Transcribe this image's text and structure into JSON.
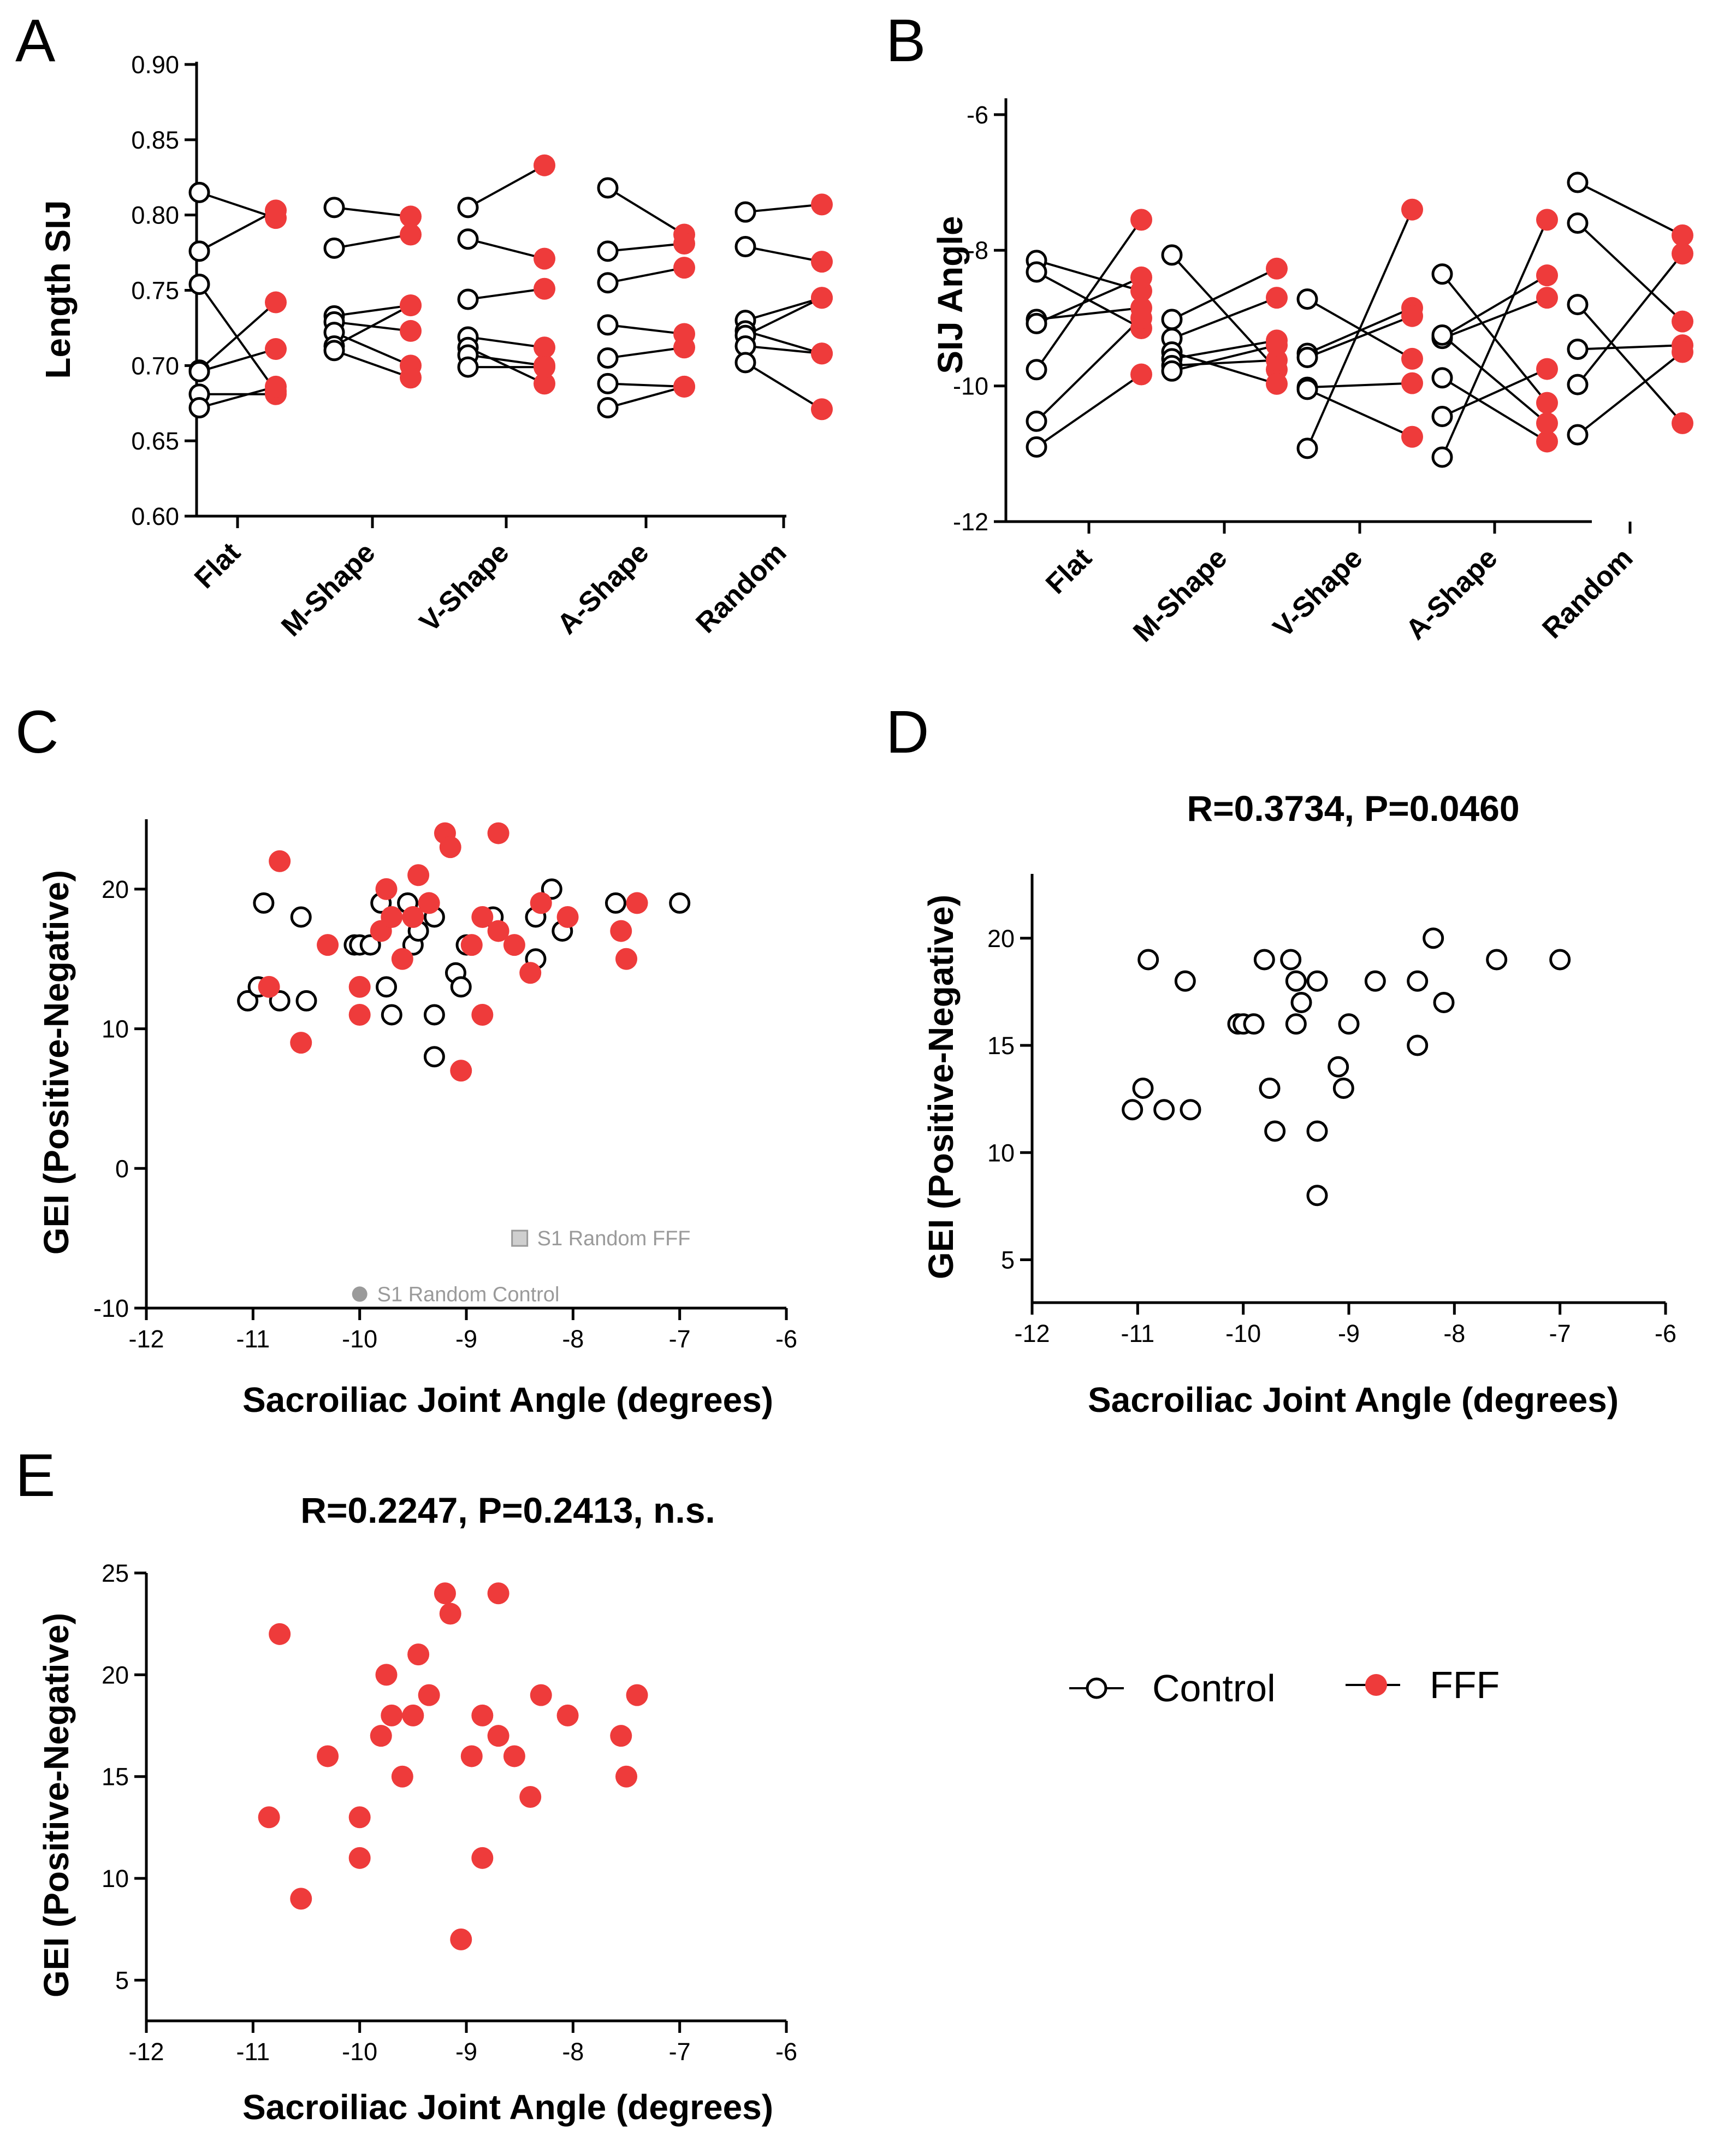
{
  "colors": {
    "control_stroke": "#000000",
    "fff_fill": "#ee3b3b",
    "annotation": "#9a9a9a"
  },
  "legend": {
    "control_label": "Control",
    "fff_label": "FFF"
  },
  "chart_data": [
    {
      "panel": "A",
      "type": "scatter",
      "style": "paired-dot",
      "title": "",
      "xlabel": "",
      "ylabel": "Length SIJ",
      "ylim": [
        0.6,
        0.9
      ],
      "yticks": [
        0.6,
        0.65,
        0.7,
        0.75,
        0.8,
        0.85,
        0.9
      ],
      "ytick_labels": [
        "0.60",
        "0.65",
        "0.70",
        "0.75",
        "0.80",
        "0.85",
        "0.90"
      ],
      "categories": [
        "Flat",
        "M-Shape",
        "V-Shape",
        "A-Shape",
        "Random"
      ],
      "pairs": [
        [
          [
            0.815,
            0.798
          ],
          [
            0.776,
            0.803
          ],
          [
            0.754,
            0.683
          ],
          [
            0.697,
            0.742
          ],
          [
            0.696,
            0.711
          ],
          [
            0.681,
            0.681
          ],
          [
            0.672,
            0.686
          ]
        ],
        [
          [
            0.805,
            0.799
          ],
          [
            0.778,
            0.787
          ],
          [
            0.733,
            0.74
          ],
          [
            0.729,
            0.723
          ],
          [
            0.722,
            0.7
          ],
          [
            0.713,
            0.74
          ],
          [
            0.71,
            0.692
          ]
        ],
        [
          [
            0.805,
            0.833
          ],
          [
            0.784,
            0.771
          ],
          [
            0.744,
            0.751
          ],
          [
            0.719,
            0.712
          ],
          [
            0.712,
            0.688
          ],
          [
            0.707,
            0.7
          ],
          [
            0.699,
            0.699
          ]
        ],
        [
          [
            0.818,
            0.787
          ],
          [
            0.776,
            0.781
          ],
          [
            0.755,
            0.765
          ],
          [
            0.727,
            0.721
          ],
          [
            0.705,
            0.712
          ],
          [
            0.688,
            0.686
          ],
          [
            0.672,
            0.686
          ]
        ],
        [
          [
            0.802,
            0.807
          ],
          [
            0.779,
            0.769
          ],
          [
            0.73,
            0.745
          ],
          [
            0.723,
            0.708
          ],
          [
            0.72,
            0.745
          ],
          [
            0.713,
            0.708
          ],
          [
            0.702,
            0.671
          ]
        ]
      ]
    },
    {
      "panel": "B",
      "type": "scatter",
      "style": "paired-dot",
      "title": "",
      "xlabel": "",
      "ylabel": "SIJ Angle",
      "ylim": [
        -12,
        -5.8
      ],
      "yticks": [
        -12,
        -10,
        -8,
        -6
      ],
      "ytick_labels": [
        "-12",
        "-10",
        "-8",
        "-6"
      ],
      "categories": [
        "Flat",
        "M-Shape",
        "V-Shape",
        "A-Shape",
        "Random"
      ],
      "pairs": [
        [
          [
            -8.15,
            -8.6
          ],
          [
            -8.32,
            -9.15
          ],
          [
            -9.02,
            -8.85
          ],
          [
            -9.08,
            -8.4
          ],
          [
            -9.76,
            -7.55
          ],
          [
            -10.52,
            -9.0
          ],
          [
            -10.9,
            -9.83
          ]
        ],
        [
          [
            -8.07,
            -9.76
          ],
          [
            -9.02,
            -8.27
          ],
          [
            -9.3,
            -8.7
          ],
          [
            -9.5,
            -9.97
          ],
          [
            -9.6,
            -9.33
          ],
          [
            -9.7,
            -9.62
          ],
          [
            -9.78,
            -9.4
          ]
        ],
        [
          [
            -8.72,
            -9.6
          ],
          [
            -9.52,
            -8.85
          ],
          [
            -9.58,
            -8.97
          ],
          [
            -10.02,
            -9.96
          ],
          [
            -10.05,
            -10.75
          ],
          [
            -10.92,
            -7.4
          ]
        ],
        [
          [
            -8.35,
            -10.25
          ],
          [
            -9.28,
            -8.37
          ],
          [
            -9.3,
            -8.7
          ],
          [
            -9.88,
            -10.82
          ],
          [
            -10.45,
            -9.75
          ],
          [
            -11.05,
            -7.55
          ],
          [
            -9.25,
            -10.55
          ]
        ],
        [
          [
            -7.0,
            -7.78
          ],
          [
            -7.6,
            -9.05
          ],
          [
            -8.8,
            -10.55
          ],
          [
            -9.46,
            -9.4
          ],
          [
            -9.98,
            -8.05
          ],
          [
            -10.72,
            -9.5
          ]
        ]
      ]
    },
    {
      "panel": "C",
      "type": "scatter",
      "title": "",
      "xlabel": "Sacroiliac Joint Angle (degrees)",
      "ylabel": "GEI (Positive-Negative)",
      "xlim": [
        -12,
        -6
      ],
      "ylim": [
        -10,
        25
      ],
      "xticks": [
        -12,
        -11,
        -10,
        -9,
        -8,
        -7,
        -6
      ],
      "xtick_labels": [
        "-12",
        "-11",
        "-10",
        "-9",
        "-8",
        "-7",
        "-6"
      ],
      "yticks": [
        -10,
        0,
        10,
        20
      ],
      "ytick_labels": [
        "-10",
        "0",
        "10",
        "20"
      ],
      "annotations": [
        {
          "text": "S1 Random FFF",
          "x": -8.5,
          "y": -5,
          "marker": "gray-square"
        },
        {
          "text": "S1 Random Control",
          "x": -10,
          "y": -9,
          "marker": "gray-circle"
        }
      ],
      "series": [
        {
          "name": "Control",
          "points": [
            [
              -11.05,
              12
            ],
            [
              -10.95,
              13
            ],
            [
              -10.9,
              19
            ],
            [
              -10.75,
              12
            ],
            [
              -10.5,
              12
            ],
            [
              -10.55,
              18
            ],
            [
              -10.05,
              16
            ],
            [
              -10.0,
              16
            ],
            [
              -9.9,
              16
            ],
            [
              -9.8,
              19
            ],
            [
              -9.75,
              13
            ],
            [
              -9.7,
              11
            ],
            [
              -9.55,
              19
            ],
            [
              -9.5,
              16
            ],
            [
              -9.45,
              17
            ],
            [
              -9.5,
              18
            ],
            [
              -9.3,
              18
            ],
            [
              -9.3,
              11
            ],
            [
              -9.3,
              8
            ],
            [
              -9.1,
              14
            ],
            [
              -9.05,
              13
            ],
            [
              -9.0,
              16
            ],
            [
              -8.75,
              18
            ],
            [
              -8.35,
              18
            ],
            [
              -8.35,
              15
            ],
            [
              -8.2,
              20
            ],
            [
              -8.1,
              17
            ],
            [
              -7.6,
              19
            ],
            [
              -7.0,
              19
            ]
          ]
        },
        {
          "name": "FFF",
          "points": [
            [
              -10.85,
              13
            ],
            [
              -10.75,
              22
            ],
            [
              -10.55,
              9
            ],
            [
              -10.3,
              16
            ],
            [
              -10.0,
              13
            ],
            [
              -10.0,
              11
            ],
            [
              -9.8,
              17
            ],
            [
              -9.75,
              20
            ],
            [
              -9.7,
              18
            ],
            [
              -9.6,
              15
            ],
            [
              -9.5,
              18
            ],
            [
              -9.45,
              21
            ],
            [
              -9.35,
              19
            ],
            [
              -9.2,
              24
            ],
            [
              -9.15,
              23
            ],
            [
              -9.05,
              7
            ],
            [
              -8.95,
              16
            ],
            [
              -8.85,
              18
            ],
            [
              -8.85,
              11
            ],
            [
              -8.7,
              24
            ],
            [
              -8.7,
              17
            ],
            [
              -8.55,
              16
            ],
            [
              -8.4,
              14
            ],
            [
              -8.3,
              19
            ],
            [
              -8.05,
              18
            ],
            [
              -7.55,
              17
            ],
            [
              -7.5,
              15
            ],
            [
              -7.4,
              19
            ]
          ]
        }
      ]
    },
    {
      "panel": "D",
      "type": "scatter",
      "title": "R=0.3734, P=0.0460",
      "xlabel": "Sacroiliac Joint Angle (degrees)",
      "ylabel": "GEI (Positive-Negative)",
      "xlim": [
        -12,
        -6
      ],
      "ylim": [
        3,
        23
      ],
      "xticks": [
        -12,
        -11,
        -10,
        -9,
        -8,
        -7,
        -6
      ],
      "xtick_labels": [
        "-12",
        "-11",
        "-10",
        "-9",
        "-8",
        "-7",
        "-6"
      ],
      "yticks": [
        5,
        10,
        15,
        20
      ],
      "ytick_labels": [
        "5",
        "10",
        "15",
        "20"
      ],
      "series": [
        {
          "name": "Control",
          "points": [
            [
              -11.05,
              12
            ],
            [
              -10.95,
              13
            ],
            [
              -10.9,
              19
            ],
            [
              -10.75,
              12
            ],
            [
              -10.5,
              12
            ],
            [
              -10.55,
              18
            ],
            [
              -10.05,
              16
            ],
            [
              -10.0,
              16
            ],
            [
              -9.9,
              16
            ],
            [
              -9.8,
              19
            ],
            [
              -9.75,
              13
            ],
            [
              -9.7,
              11
            ],
            [
              -9.55,
              19
            ],
            [
              -9.5,
              16
            ],
            [
              -9.45,
              17
            ],
            [
              -9.5,
              18
            ],
            [
              -9.3,
              18
            ],
            [
              -9.3,
              11
            ],
            [
              -9.3,
              8
            ],
            [
              -9.1,
              14
            ],
            [
              -9.05,
              13
            ],
            [
              -9.0,
              16
            ],
            [
              -8.75,
              18
            ],
            [
              -8.35,
              18
            ],
            [
              -8.35,
              15
            ],
            [
              -8.2,
              20
            ],
            [
              -8.1,
              17
            ],
            [
              -7.6,
              19
            ],
            [
              -7.0,
              19
            ]
          ]
        }
      ]
    },
    {
      "panel": "E",
      "type": "scatter",
      "title": "R=0.2247, P=0.2413, n.s.",
      "xlabel": "Sacroiliac Joint Angle (degrees)",
      "ylabel": "GEI (Positive-Negative)",
      "xlim": [
        -12,
        -6
      ],
      "ylim": [
        3,
        25
      ],
      "xticks": [
        -12,
        -11,
        -10,
        -9,
        -8,
        -7,
        -6
      ],
      "xtick_labels": [
        "-12",
        "-11",
        "-10",
        "-9",
        "-8",
        "-7",
        "-6"
      ],
      "yticks": [
        5,
        10,
        15,
        20,
        25
      ],
      "ytick_labels": [
        "5",
        "10",
        "15",
        "20",
        "25"
      ],
      "series": [
        {
          "name": "FFF",
          "points": [
            [
              -10.85,
              13
            ],
            [
              -10.75,
              22
            ],
            [
              -10.55,
              9
            ],
            [
              -10.3,
              16
            ],
            [
              -10.0,
              13
            ],
            [
              -10.0,
              11
            ],
            [
              -9.8,
              17
            ],
            [
              -9.75,
              20
            ],
            [
              -9.7,
              18
            ],
            [
              -9.6,
              15
            ],
            [
              -9.5,
              18
            ],
            [
              -9.45,
              21
            ],
            [
              -9.35,
              19
            ],
            [
              -9.2,
              24
            ],
            [
              -9.15,
              23
            ],
            [
              -9.05,
              7
            ],
            [
              -8.95,
              16
            ],
            [
              -8.85,
              18
            ],
            [
              -8.85,
              11
            ],
            [
              -8.7,
              24
            ],
            [
              -8.7,
              17
            ],
            [
              -8.55,
              16
            ],
            [
              -8.4,
              14
            ],
            [
              -8.3,
              19
            ],
            [
              -8.05,
              18
            ],
            [
              -7.55,
              17
            ],
            [
              -7.5,
              15
            ],
            [
              -7.4,
              19
            ]
          ]
        }
      ]
    }
  ]
}
